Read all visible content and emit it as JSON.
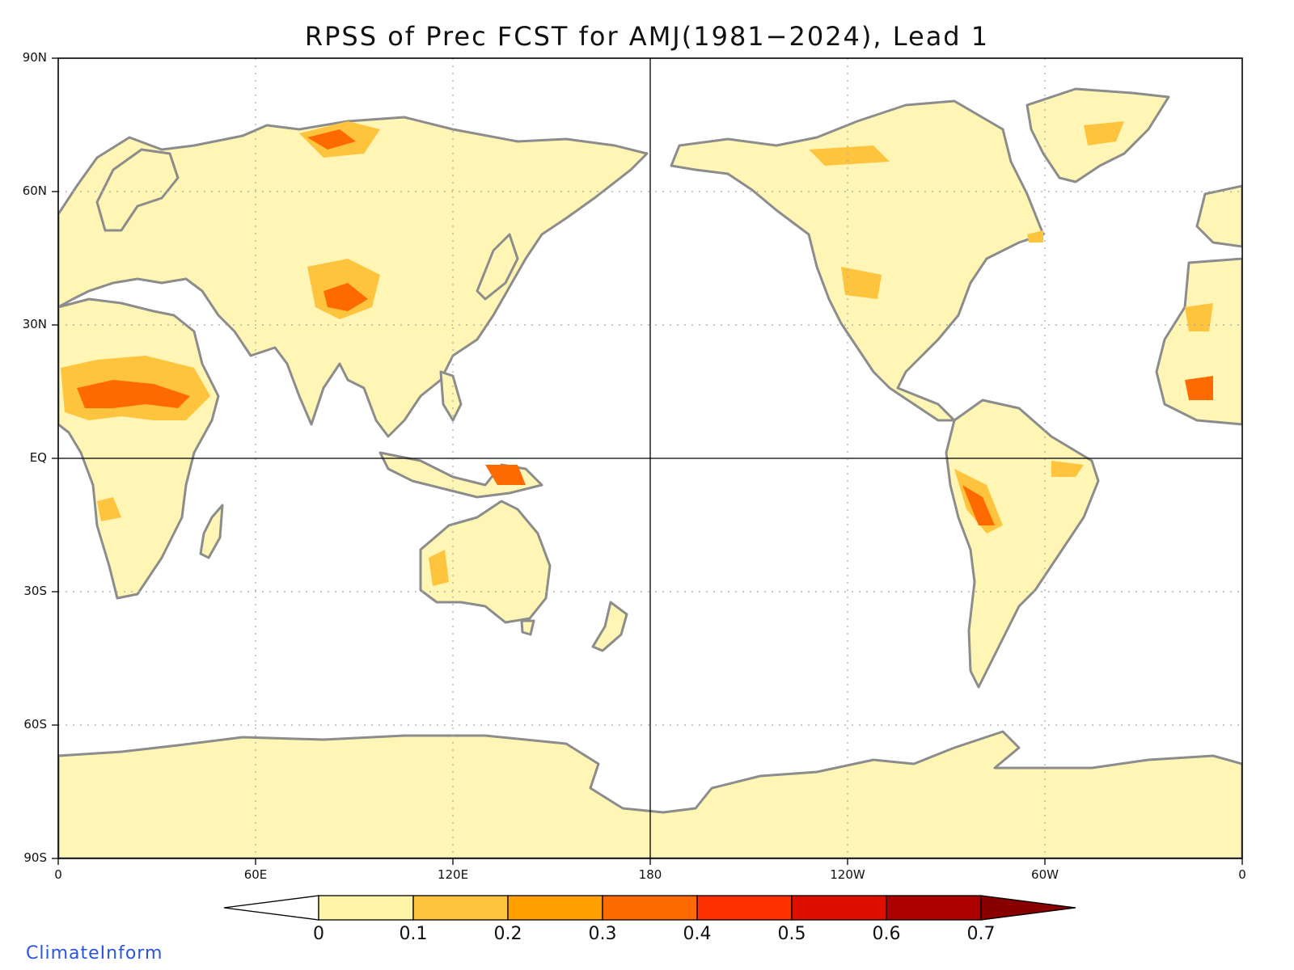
{
  "title": "RPSS of Prec FCST for AMJ(1981−2024), Lead 1",
  "map": {
    "lat_labels": [
      "90N",
      "60N",
      "30N",
      "EQ",
      "30S",
      "60S",
      "90S"
    ],
    "lon_labels": [
      "0",
      "60E",
      "120E",
      "180",
      "120W",
      "60W",
      "0"
    ],
    "lon_range": [
      0,
      360
    ],
    "lat_range": [
      -90,
      90
    ],
    "grid": "dotted"
  },
  "colorbar": {
    "ticks": [
      "0",
      "0.1",
      "0.2",
      "0.3",
      "0.4",
      "0.5",
      "0.6",
      "0.7"
    ],
    "colors": [
      "#ffffff",
      "#fff4a8",
      "#ffc43d",
      "#ffa000",
      "#ff6a00",
      "#ff3000",
      "#dd1000",
      "#aa0000",
      "#8a0000"
    ]
  },
  "brand": "ClimateInform"
}
